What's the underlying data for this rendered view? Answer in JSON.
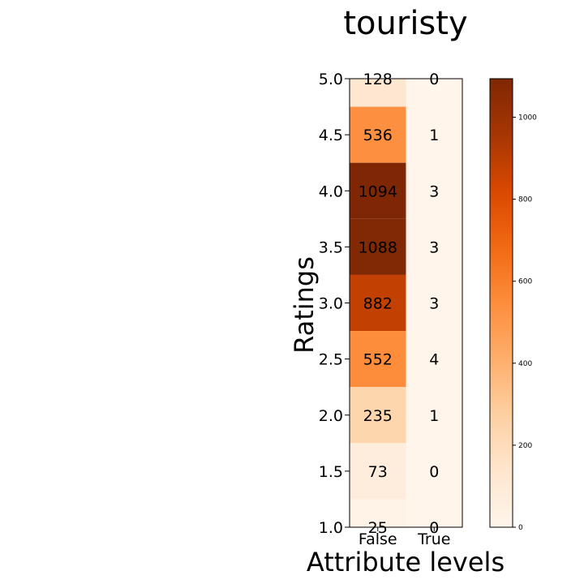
{
  "chart_data": {
    "type": "heatmap",
    "title": "touristy",
    "xlabel": "Attribute levels",
    "ylabel": "Ratings",
    "x_categories": [
      "False",
      "True"
    ],
    "y_ticks": [
      "1.0",
      "1.5",
      "2.0",
      "2.5",
      "3.0",
      "3.5",
      "4.0",
      "4.5",
      "5.0"
    ],
    "ylim": [
      1.0,
      5.0
    ],
    "rows": [
      {
        "rating": 5.0,
        "values": [
          128,
          0
        ]
      },
      {
        "rating": 4.5,
        "values": [
          536,
          1
        ]
      },
      {
        "rating": 4.0,
        "values": [
          1094,
          3
        ]
      },
      {
        "rating": 3.5,
        "values": [
          1088,
          3
        ]
      },
      {
        "rating": 3.0,
        "values": [
          882,
          3
        ]
      },
      {
        "rating": 2.5,
        "values": [
          552,
          4
        ]
      },
      {
        "rating": 2.0,
        "values": [
          235,
          1
        ]
      },
      {
        "rating": 1.5,
        "values": [
          73,
          0
        ]
      },
      {
        "rating": 1.0,
        "values": [
          25,
          0
        ]
      }
    ],
    "colorbar": {
      "colormap": "Oranges",
      "range": [
        0,
        1094
      ],
      "ticks": [
        "0",
        "200",
        "400",
        "600",
        "800",
        "1000"
      ],
      "tick_values": [
        0,
        200,
        400,
        600,
        800,
        1000
      ]
    },
    "grid": false
  }
}
